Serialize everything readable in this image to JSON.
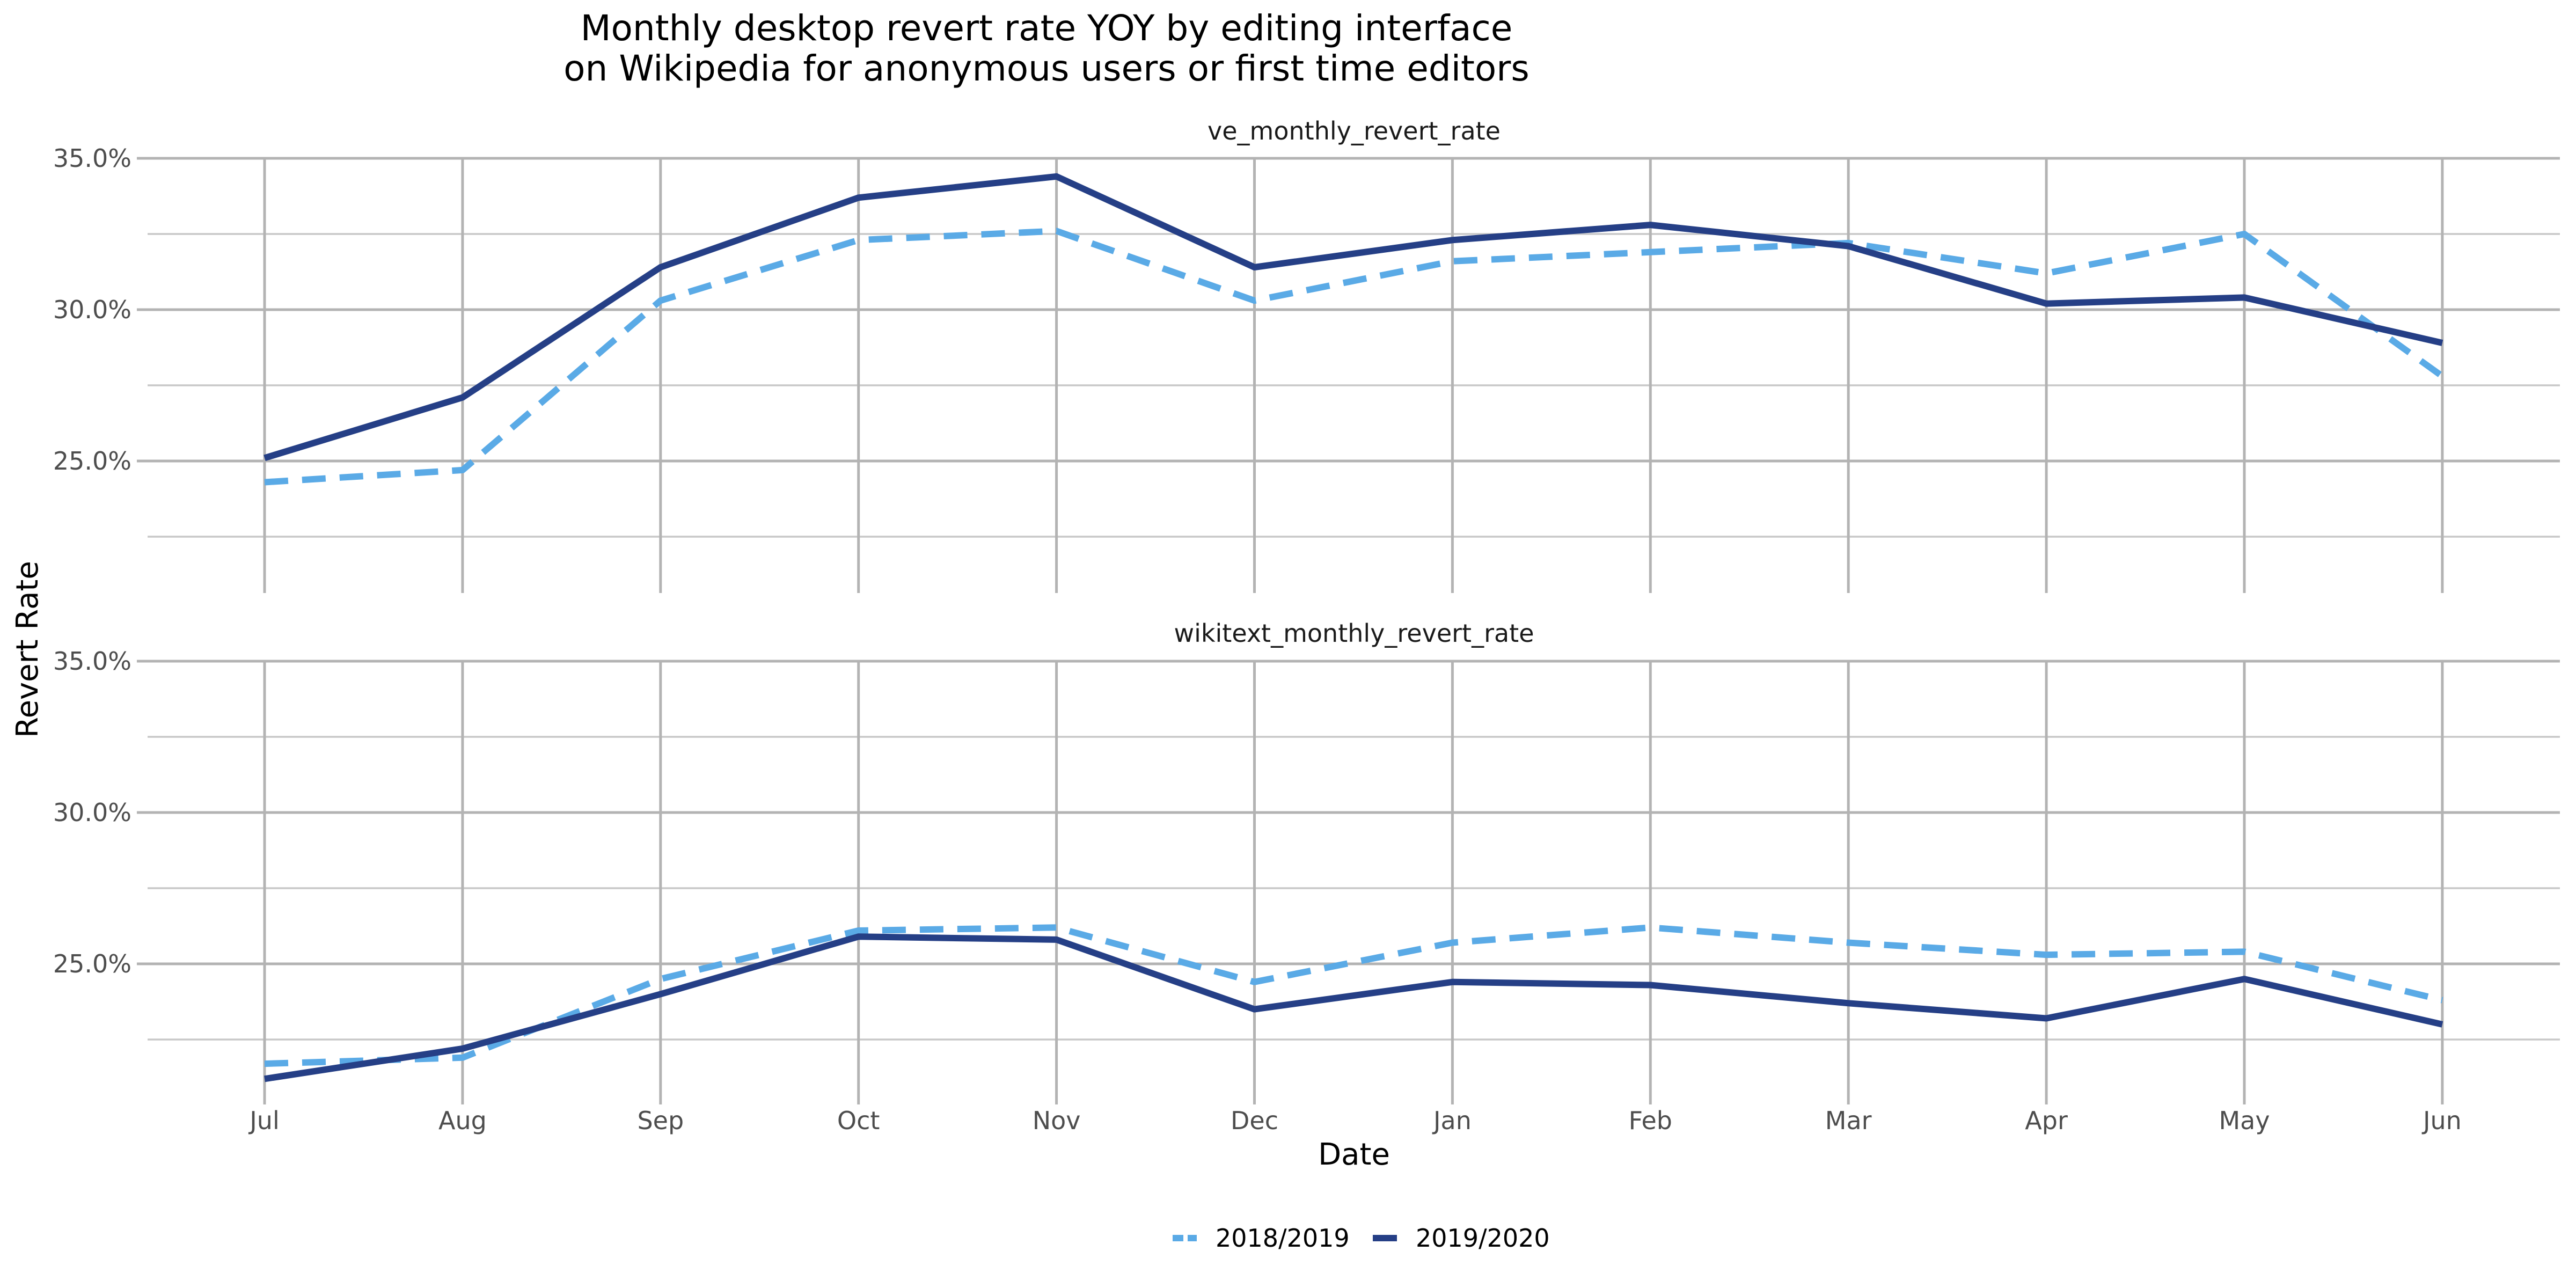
{
  "chart_data": {
    "type": "line",
    "title_line1": "Monthly desktop revert rate YOY by editing interface",
    "title_line2": "on Wikipedia for anonymous users or first time editors",
    "xlabel": "Date",
    "ylabel": "Revert Rate",
    "categories": [
      "Jul",
      "Aug",
      "Sep",
      "Oct",
      "Nov",
      "Dec",
      "Jan",
      "Feb",
      "Mar",
      "Apr",
      "May",
      "Jun"
    ],
    "y_ticks": [
      "35.0%",
      "30.0%",
      "25.0%"
    ],
    "ylim": [
      20.0,
      35.0
    ],
    "grid": true,
    "legend_position": "bottom",
    "legend": [
      {
        "name": "2018/2019",
        "color": "#5aaae6",
        "style": "dashed"
      },
      {
        "name": "2019/2020",
        "color": "#253f86",
        "style": "solid"
      }
    ],
    "panels": [
      {
        "label": "ve_monthly_revert_rate",
        "series": [
          {
            "name": "2018/2019",
            "values": [
              24.3,
              24.7,
              30.3,
              32.3,
              32.6,
              30.3,
              31.6,
              31.9,
              32.2,
              31.2,
              32.5,
              27.8
            ]
          },
          {
            "name": "2019/2020",
            "values": [
              25.1,
              27.1,
              31.4,
              33.7,
              34.4,
              31.4,
              32.3,
              32.8,
              32.1,
              30.2,
              30.4,
              28.9
            ]
          }
        ]
      },
      {
        "label": "wikitext_monthly_revert_rate",
        "series": [
          {
            "name": "2018/2019",
            "values": [
              21.7,
              21.9,
              24.5,
              26.1,
              26.2,
              24.4,
              25.7,
              26.2,
              25.7,
              25.3,
              25.4,
              23.8
            ]
          },
          {
            "name": "2019/2020",
            "values": [
              21.2,
              22.2,
              24.0,
              25.9,
              25.8,
              23.5,
              24.4,
              24.3,
              23.7,
              23.2,
              24.5,
              23.0
            ]
          }
        ]
      }
    ]
  }
}
